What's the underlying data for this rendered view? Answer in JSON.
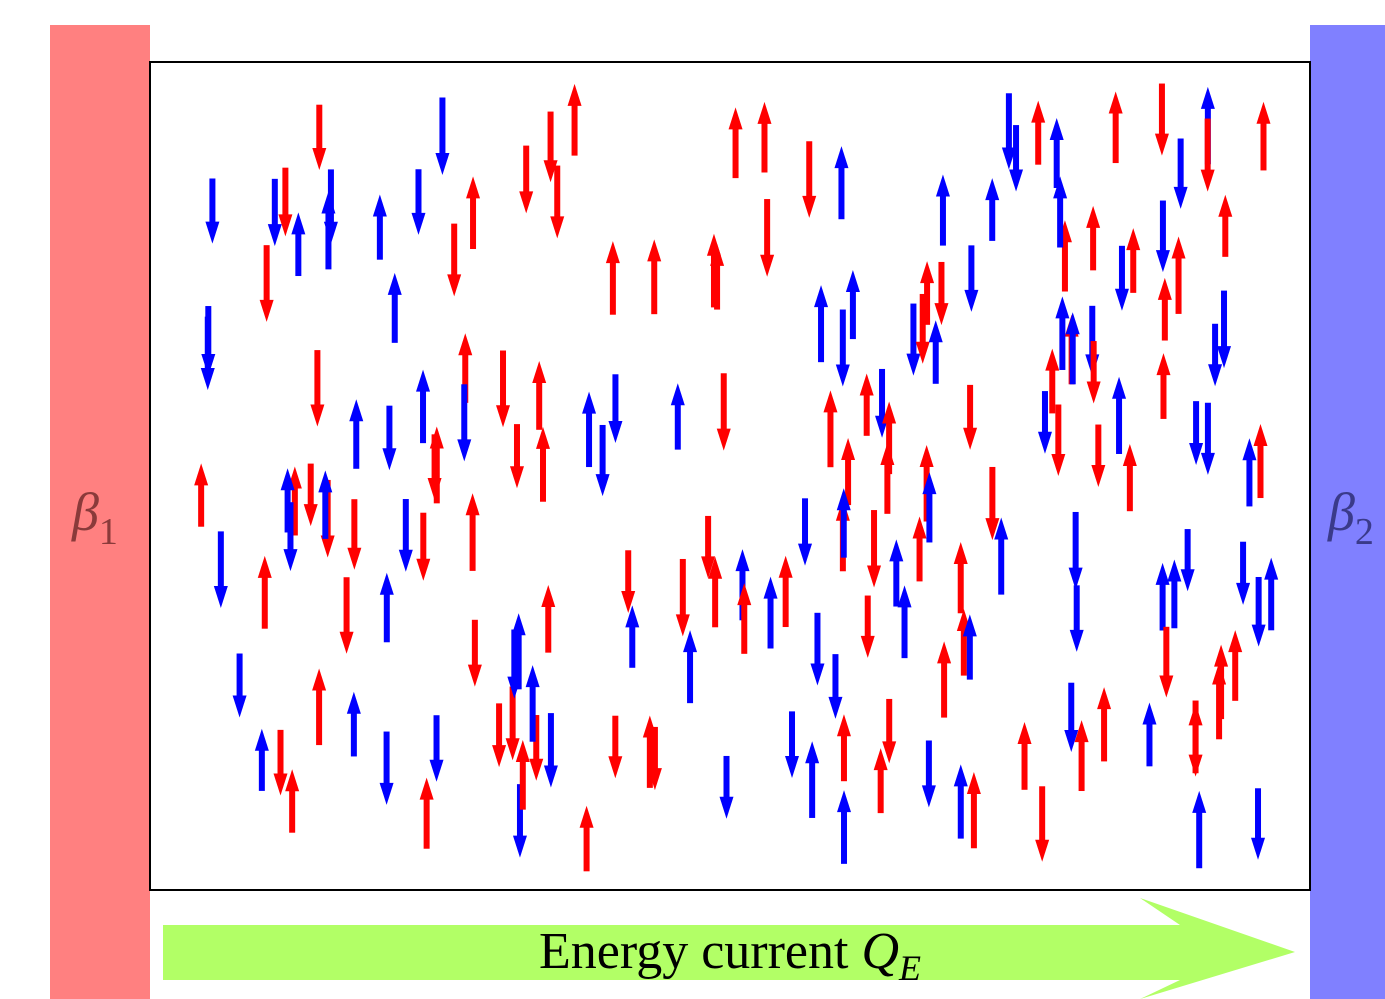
{
  "baths": {
    "left": {
      "symbol": "β",
      "subscript": "1"
    },
    "right": {
      "symbol": "β",
      "subscript": "2"
    }
  },
  "current": {
    "label": "Energy current ",
    "symbol": "Q",
    "subscript": "E"
  }
}
